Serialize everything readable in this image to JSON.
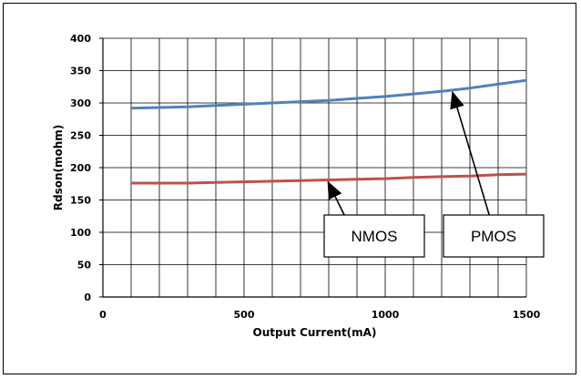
{
  "chart_data": {
    "type": "line",
    "xlabel": "Output Current(mA)",
    "ylabel": "Rdson(mohm)",
    "xlim": [
      0,
      1500
    ],
    "ylim": [
      0,
      400
    ],
    "x_ticks": [
      0,
      500,
      1000,
      1500
    ],
    "y_ticks": [
      0,
      50,
      100,
      150,
      200,
      250,
      300,
      350,
      400
    ],
    "grid": true,
    "series": [
      {
        "name": "PMOS",
        "color": "#4f81bd",
        "x": [
          100,
          200,
          300,
          400,
          500,
          600,
          700,
          800,
          900,
          1000,
          1100,
          1200,
          1300,
          1400,
          1500
        ],
        "y": [
          292,
          293,
          294,
          296,
          298,
          300,
          302,
          304,
          307,
          310,
          314,
          318,
          323,
          329,
          335
        ]
      },
      {
        "name": "NMOS",
        "color": "#c0504d",
        "x": [
          100,
          200,
          300,
          400,
          500,
          600,
          700,
          800,
          900,
          1000,
          1100,
          1200,
          1300,
          1400,
          1500
        ],
        "y": [
          176,
          176,
          176,
          177,
          178,
          179,
          180,
          181,
          182,
          183,
          185,
          186,
          187,
          189,
          190
        ]
      }
    ],
    "annotations": [
      {
        "text": "NMOS",
        "series": "NMOS",
        "points_to_x": 800,
        "points_to_y": 181
      },
      {
        "text": "PMOS",
        "series": "PMOS",
        "points_to_x": 1240,
        "points_to_y": 320
      }
    ]
  }
}
